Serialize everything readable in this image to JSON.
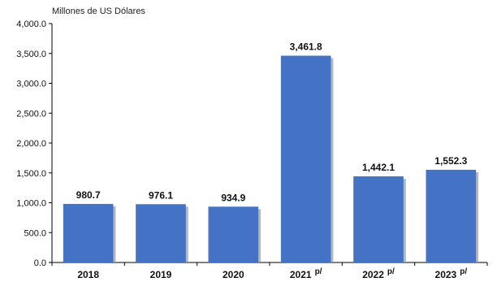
{
  "chart_data": {
    "type": "bar",
    "unit_label": "Millones de US Dólares",
    "categories": [
      "2018",
      "2019",
      "2020",
      "2021",
      "2022",
      "2023"
    ],
    "category_suffix": [
      "",
      "",
      "",
      "p/",
      "p/",
      "p/"
    ],
    "values": [
      980.7,
      976.1,
      934.9,
      3461.8,
      1442.1,
      1552.3
    ],
    "value_labels": [
      "980.7",
      "976.1",
      "934.9",
      "3,461.8",
      "1,442.1",
      "1,552.3"
    ],
    "ylim": [
      0,
      4000
    ],
    "yticks": [
      0,
      500,
      1000,
      1500,
      2000,
      2500,
      3000,
      3500,
      4000
    ],
    "ytick_labels": [
      "0.0",
      "500.0",
      "1,000.0",
      "1,500.0",
      "2,000.0",
      "2,500.0",
      "3,000.0",
      "3,500.0",
      "4,000.0"
    ],
    "grid": false,
    "bar_color": "#4472C4",
    "shadow_color": "#9a9a9a"
  }
}
